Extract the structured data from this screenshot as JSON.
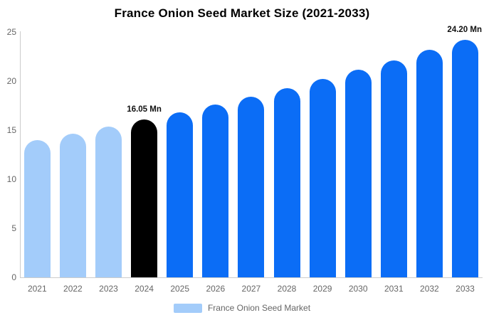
{
  "title": "France Onion Seed Market Size (2021-2033)",
  "legend": {
    "label": "France Onion Seed Market",
    "swatch_color": "#a3ccfa"
  },
  "colors": {
    "primary_blue": "#0b6df6",
    "light_blue": "#a3ccfa",
    "highlight_black": "#000000",
    "axis_text": "#666666",
    "axis_line": "#cccccc",
    "background": "#ffffff"
  },
  "chart_data": {
    "type": "bar",
    "title": "France Onion Seed Market Size (2021-2033)",
    "categories": [
      "2021",
      "2022",
      "2023",
      "2024",
      "2025",
      "2026",
      "2027",
      "2028",
      "2029",
      "2030",
      "2031",
      "2032",
      "2033"
    ],
    "values": [
      13.99,
      14.65,
      15.33,
      16.05,
      16.8,
      17.58,
      18.4,
      19.26,
      20.16,
      21.1,
      22.09,
      23.12,
      24.2
    ],
    "bar_colors": [
      "#a3ccfa",
      "#a3ccfa",
      "#a3ccfa",
      "#000000",
      "#0b6df6",
      "#0b6df6",
      "#0b6df6",
      "#0b6df6",
      "#0b6df6",
      "#0b6df6",
      "#0b6df6",
      "#0b6df6",
      "#0b6df6"
    ],
    "data_labels": [
      {
        "index": 3,
        "text": "16.05 Mn"
      },
      {
        "index": 12,
        "text": "24.20 Mn"
      }
    ],
    "xlabel": "",
    "ylabel": "",
    "ylim": [
      0,
      25
    ],
    "yticks": [
      0,
      5,
      10,
      15,
      20,
      25
    ],
    "grid": false,
    "legend_position": "bottom"
  }
}
